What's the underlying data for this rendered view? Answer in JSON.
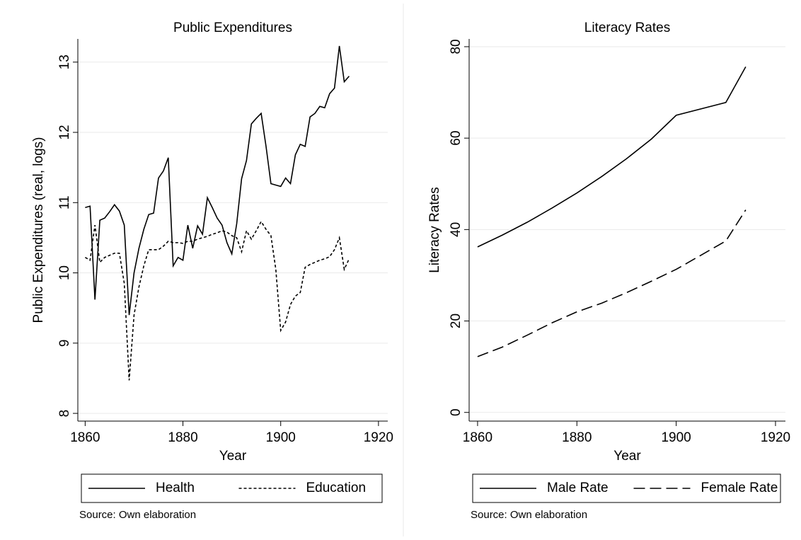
{
  "chart_data": [
    {
      "type": "line",
      "title": "Public Expenditures",
      "xlabel": "Year",
      "ylabel": "Public Expenditures (real, logs)",
      "x": [
        1860,
        1861,
        1862,
        1863,
        1864,
        1865,
        1866,
        1867,
        1868,
        1869,
        1870,
        1871,
        1872,
        1873,
        1874,
        1875,
        1876,
        1877,
        1878,
        1879,
        1880,
        1881,
        1882,
        1883,
        1884,
        1885,
        1886,
        1887,
        1888,
        1889,
        1890,
        1891,
        1892,
        1893,
        1894,
        1895,
        1896,
        1897,
        1898,
        1899,
        1900,
        1901,
        1902,
        1903,
        1904,
        1905,
        1906,
        1907,
        1908,
        1909,
        1910,
        1911,
        1912,
        1913,
        1914
      ],
      "series": [
        {
          "name": "Health",
          "color": "#000000",
          "dash": "none",
          "values": [
            10.93,
            10.95,
            9.62,
            10.75,
            10.78,
            10.87,
            10.97,
            10.88,
            10.68,
            9.4,
            10.0,
            10.35,
            10.62,
            10.83,
            10.85,
            11.35,
            11.45,
            11.64,
            10.1,
            10.22,
            10.18,
            10.68,
            10.35,
            10.67,
            10.55,
            11.07,
            10.93,
            10.78,
            10.68,
            10.43,
            10.27,
            10.7,
            11.34,
            11.6,
            12.12,
            12.2,
            12.27,
            11.8,
            11.27,
            11.25,
            11.23,
            11.35,
            11.27,
            11.68,
            11.83,
            11.8,
            12.22,
            12.27,
            12.37,
            12.35,
            12.55,
            12.63,
            13.23,
            12.72,
            12.8
          ]
        },
        {
          "name": "Education",
          "color": "#000000",
          "dash": "4,3",
          "values": [
            10.22,
            10.18,
            10.68,
            10.15,
            10.22,
            10.25,
            10.28,
            10.28,
            9.85,
            8.47,
            9.4,
            9.8,
            10.1,
            10.33,
            10.33,
            10.33,
            10.38,
            10.45,
            10.43,
            10.43,
            10.42,
            10.45,
            10.45,
            10.48,
            10.5,
            10.52,
            10.55,
            10.57,
            10.6,
            10.58,
            10.53,
            10.5,
            10.3,
            10.6,
            10.48,
            10.6,
            10.73,
            10.62,
            10.53,
            10.05,
            9.18,
            9.3,
            9.55,
            9.67,
            9.72,
            10.08,
            10.12,
            10.15,
            10.18,
            10.2,
            10.23,
            10.33,
            10.5,
            10.05,
            10.2
          ]
        }
      ],
      "xlim": [
        1858.5,
        1921.9
      ],
      "xticks": [
        1860,
        1880,
        1900,
        1920
      ],
      "ylim": [
        7.89,
        13.33
      ],
      "yticks": [
        8,
        9,
        10,
        11,
        12,
        13
      ],
      "grid": true,
      "legend": "bottom",
      "note": "Source:  Own elaboration"
    },
    {
      "type": "line",
      "title": "Literacy Rates",
      "xlabel": "Year",
      "ylabel": "Literacy Rates",
      "x": [
        1860,
        1865,
        1870,
        1875,
        1880,
        1885,
        1890,
        1895,
        1900,
        1910,
        1914
      ],
      "series": [
        {
          "name": "Male Rate",
          "color": "#000000",
          "dash": "none",
          "values": [
            36.2,
            38.8,
            41.6,
            44.7,
            48.0,
            51.6,
            55.5,
            59.8,
            65.0,
            67.8,
            75.6
          ]
        },
        {
          "name": "Female Rate",
          "color": "#000000",
          "dash": "16,7",
          "values": [
            12.2,
            14.3,
            16.9,
            19.6,
            22.0,
            23.9,
            26.2,
            28.7,
            31.3,
            37.5,
            44.3
          ]
        }
      ],
      "xlim": [
        1858.3,
        1922
      ],
      "xticks": [
        1860,
        1880,
        1900,
        1920
      ],
      "ylim": [
        -1.9,
        81.7
      ],
      "yticks": [
        0,
        20,
        40,
        60,
        80
      ],
      "grid": true,
      "legend": "bottom",
      "note": "Source:  Own elaboration"
    }
  ]
}
